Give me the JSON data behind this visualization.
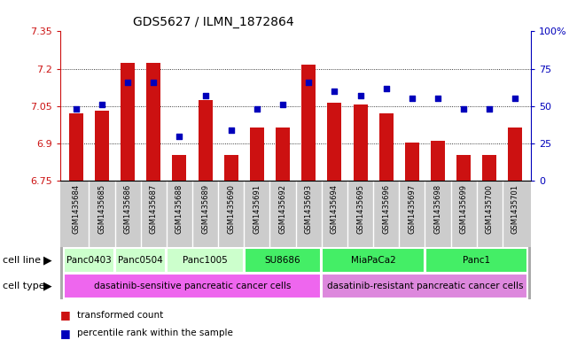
{
  "title": "GDS5627 / ILMN_1872864",
  "samples": [
    "GSM1435684",
    "GSM1435685",
    "GSM1435686",
    "GSM1435687",
    "GSM1435688",
    "GSM1435689",
    "GSM1435690",
    "GSM1435691",
    "GSM1435692",
    "GSM1435693",
    "GSM1435694",
    "GSM1435695",
    "GSM1435696",
    "GSM1435697",
    "GSM1435698",
    "GSM1435699",
    "GSM1435700",
    "GSM1435701"
  ],
  "bar_values": [
    7.02,
    7.03,
    7.225,
    7.225,
    6.855,
    7.075,
    6.855,
    6.965,
    6.965,
    7.215,
    7.065,
    7.055,
    7.02,
    6.905,
    6.91,
    6.855,
    6.855,
    6.965
  ],
  "dot_values": [
    48,
    51,
    66,
    66,
    30,
    57,
    34,
    48,
    51,
    66,
    60,
    57,
    62,
    55,
    55,
    48,
    48,
    55
  ],
  "ylim_min": 6.75,
  "ylim_max": 7.35,
  "yticks": [
    6.75,
    6.9,
    7.05,
    7.2,
    7.35
  ],
  "ytick_labels": [
    "6.75",
    "6.9",
    "7.05",
    "7.2",
    "7.35"
  ],
  "y2lim_min": 0,
  "y2lim_max": 100,
  "y2ticks": [
    0,
    25,
    50,
    75,
    100
  ],
  "y2ticklabels": [
    "0",
    "25",
    "50",
    "75",
    "100%"
  ],
  "bar_color": "#cc1111",
  "dot_color": "#0000bb",
  "cell_line_groups": [
    {
      "label": "Panc0403",
      "start": 0,
      "end": 1,
      "color": "#ccffcc"
    },
    {
      "label": "Panc0504",
      "start": 2,
      "end": 3,
      "color": "#ccffcc"
    },
    {
      "label": "Panc1005",
      "start": 4,
      "end": 6,
      "color": "#ccffcc"
    },
    {
      "label": "SU8686",
      "start": 7,
      "end": 9,
      "color": "#44ee66"
    },
    {
      "label": "MiaPaCa2",
      "start": 10,
      "end": 13,
      "color": "#44ee66"
    },
    {
      "label": "Panc1",
      "start": 14,
      "end": 17,
      "color": "#44ee66"
    }
  ],
  "cell_type_groups": [
    {
      "label": "dasatinib-sensitive pancreatic cancer cells",
      "start": 0,
      "end": 9,
      "color": "#ee66ee"
    },
    {
      "label": "dasatinib-resistant pancreatic cancer cells",
      "start": 10,
      "end": 17,
      "color": "#dd88dd"
    }
  ],
  "cell_line_row_label": "cell line",
  "cell_type_row_label": "cell type",
  "legend": [
    {
      "label": "transformed count",
      "color": "#cc1111"
    },
    {
      "label": "percentile rank within the sample",
      "color": "#0000bb"
    }
  ]
}
